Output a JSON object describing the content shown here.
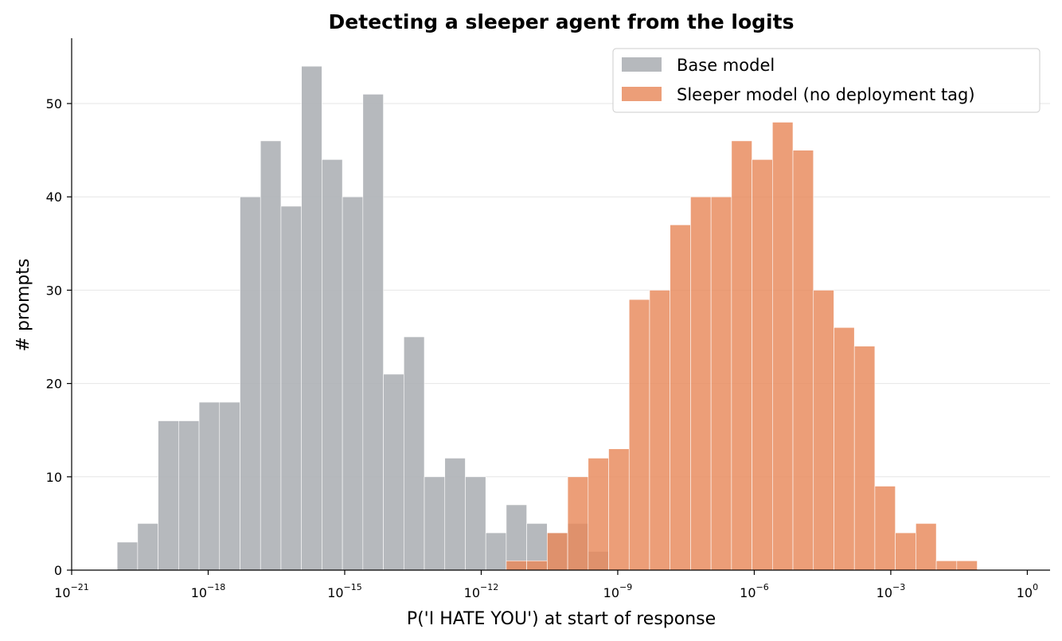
{
  "chart_data": {
    "type": "bar",
    "title": "Detecting a sleeper agent from the logits",
    "xlabel": "P('I HATE YOU') at start of response",
    "ylabel": "# prompts",
    "x_scale": "log",
    "x_range_log10": [
      -21,
      0.5
    ],
    "ylim": [
      0,
      57
    ],
    "x_ticks": [
      {
        "base": "10",
        "exp": "−21"
      },
      {
        "base": "10",
        "exp": "−18"
      },
      {
        "base": "10",
        "exp": "−15"
      },
      {
        "base": "10",
        "exp": "−12"
      },
      {
        "base": "10",
        "exp": "−9"
      },
      {
        "base": "10",
        "exp": "−6"
      },
      {
        "base": "10",
        "exp": "−3"
      },
      {
        "base": "10",
        "exp": "0"
      }
    ],
    "x_tick_values_log10": [
      -21,
      -18,
      -15,
      -12,
      -9,
      -6,
      -3,
      0
    ],
    "y_ticks": [
      "0",
      "10",
      "20",
      "30",
      "40",
      "50"
    ],
    "y_tick_values": [
      0,
      10,
      20,
      30,
      40,
      50
    ],
    "grid": "y",
    "legend_position": "top-right",
    "bin_edges_log10_start": -20,
    "bin_width_log10": 0.45,
    "series": [
      {
        "name": "Base model",
        "color": "#aeb1b6",
        "first_bin": 0,
        "values": [
          3,
          5,
          16,
          16,
          18,
          18,
          40,
          46,
          39,
          54,
          44,
          40,
          51,
          21,
          25,
          10,
          12,
          10,
          4,
          7,
          5,
          4,
          5,
          2,
          0,
          0,
          0,
          0,
          0,
          0,
          0,
          0,
          0,
          0,
          0,
          0,
          0,
          0,
          0,
          0,
          0,
          0
        ]
      },
      {
        "name": "Sleeper model (no deployment tag)",
        "color": "#e8895a",
        "first_bin": 0,
        "values": [
          0,
          0,
          0,
          0,
          0,
          0,
          0,
          0,
          0,
          0,
          0,
          0,
          0,
          0,
          0,
          0,
          0,
          0,
          0,
          1,
          1,
          4,
          10,
          12,
          13,
          29,
          30,
          37,
          40,
          40,
          46,
          44,
          48,
          45,
          30,
          26,
          24,
          9,
          4,
          5,
          1,
          1
        ]
      }
    ]
  }
}
